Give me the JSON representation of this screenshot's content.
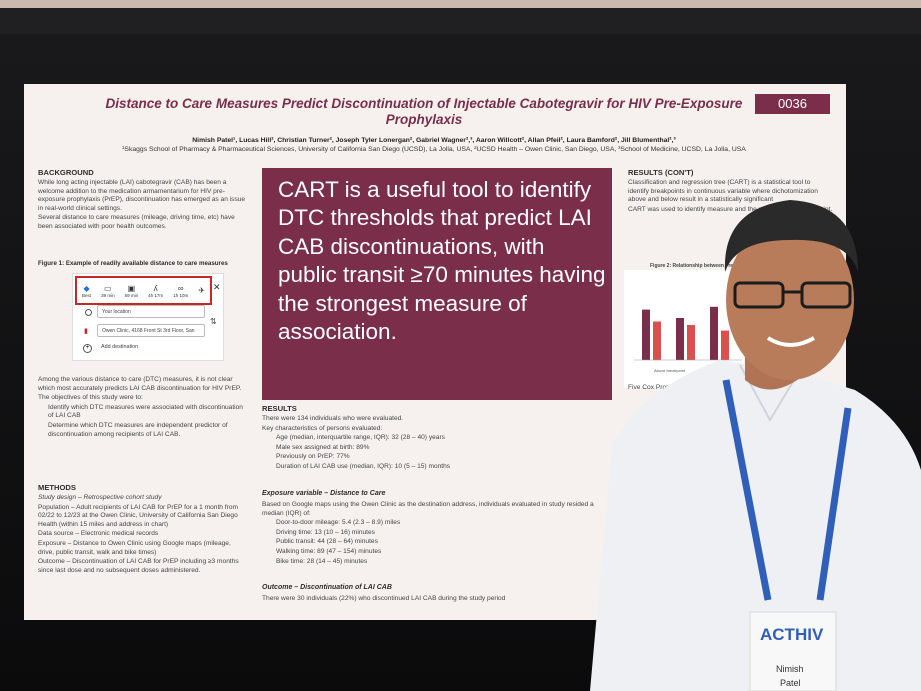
{
  "poster": {
    "title": "Distance to Care Measures Predict Discontinuation of Injectable Cabotegravir for HIV Pre-Exposure Prophylaxis",
    "number": "0036",
    "authors": "Nimish Patel¹, Lucas Hill², Christian Turner², Joseph Tyler Lonergan², Gabriel Wagner²,³, Aaron Willcott², Allan Pfeil², Laura Bamford², Jill Blumenthal²,³",
    "affiliations": "¹Skaggs School of Pharmacy & Pharmaceutical Sciences, University of California San Diego (UCSD), La Jolla, USA, ²UCSD Health – Owen Clinic, San Diego, USA, ³School of Medicine, UCSD, La Jolla, USA"
  },
  "background": {
    "heading": "BACKGROUND",
    "items": [
      "While long acting injectable (LAI) cabotegravir (CAB) has been a welcome addition to the medication armamentarium for HIV pre-exposure prophylaxis (PrEP), discontinuation has emerged as an issue in real-world clinical settings.",
      "Several distance to care measures (mileage, driving time, etc) have been associated with poor health outcomes."
    ],
    "figure_caption": "Figure 1: Example of readily available distance to care measures",
    "figure": {
      "modes": [
        {
          "icon": "diamond-icon",
          "label": "Best"
        },
        {
          "icon": "car-icon",
          "label": "39 min"
        },
        {
          "icon": "bus-icon",
          "label": "59 min"
        },
        {
          "icon": "walk-icon",
          "label": "4h 17m"
        },
        {
          "icon": "bike-icon",
          "label": "1h 10m"
        },
        {
          "icon": "plane-icon",
          "label": ""
        }
      ],
      "origin": "Your location",
      "destination": "Owen Clinic, 4168 Front St 3rd Floor, San",
      "add": "Add destination"
    },
    "items2": [
      "Among the various distance to care (DTC) measures, it is not clear which most accurately predicts LAI CAB discontinuation for HIV PrEP.",
      "The objectives of this study were to:"
    ],
    "objectives": [
      "Identify which DTC measures were associated with discontinuation of LAI CAB",
      "Determine which DTC measures are independent predictor of discontinuation among recipients of LAI CAB."
    ]
  },
  "methods": {
    "heading": "METHODS",
    "items": [
      "Study design – Retrospective cohort study",
      "Population – Adult recipients of LAI CAB for PrEP for a 1 month from 02/22 to 12/23 at the Owen Clinic, University of California San Diego Health (within 15 miles and address in chart)",
      "Data source – Electronic medical records",
      "Exposure – Distance to Owen Clinic using Google maps (mileage, drive, public transit, walk and bike times)",
      "Outcome – Discontinuation of LAI CAB for PrEP including ≥3 months since last dose and no subsequent doses administered."
    ]
  },
  "callout": "CART is a useful tool to identify DTC thresholds that predict LAI CAB discontinuations, with public transit ≥70 minutes having the strongest measure of association.",
  "results": {
    "heading": "RESULTS",
    "items": [
      "There were 134 individuals who were evaluated.",
      "Key characteristics of persons evaluated:"
    ],
    "subitems": [
      "Age (median, interquartile range, IQR): 32 (28 – 40) years",
      "Male sex assigned at birth: 89%",
      "Previously on PrEP: 77%",
      "Duration of LAI CAB use (median, IQR): 10 (5 – 15) months"
    ],
    "exposure_heading": "Exposure variable – Distance to Care",
    "exposure_intro": "Based on Google maps using the Owen Clinic as the destination address, individuals evaluated in study resided a median (IQR) of:",
    "exposure_items": [
      "Door-to-door mileage: 5.4 (2.3 – 8.9) miles",
      "Driving time: 13 (10 – 16) minutes",
      "Public transit: 44 (28 – 64) minutes",
      "Walking time: 89 (47 – 154) minutes",
      "Bike time: 28 (14 – 45) minutes"
    ],
    "outcome_heading": "Outcome – Discontinuation of LAI CAB",
    "outcome_item": "There were 30 individuals (22%) who discontinued LAI CAB during the study period"
  },
  "results_cont": {
    "heading": "RESULTS (CON'T)",
    "items": [
      "Classification and regression tree (CART) is a statistical tool to identify breakpoints in continuous variable where dichotomization above and below result in a statistically significant",
      "CART was used to identify measure and the variable each breakpoint."
    ],
    "figure_caption": "Figure 2: Relationship between Frequency of LAI",
    "chart_legend": "Above breakpoint",
    "cut_item": "Five Cox Proport run to de"
  },
  "chart_data": {
    "type": "bar",
    "categories": [
      "",
      "",
      ""
    ],
    "series": [
      {
        "name": "",
        "values": [
          0.72,
          0.6,
          0.76
        ],
        "color": "#7a2e4a"
      },
      {
        "name": "",
        "values": [
          0.55,
          0.5,
          0.42
        ],
        "color": "#d9504f"
      }
    ]
  },
  "badge": {
    "logo": "ACTHIV",
    "name_first": "Nimish",
    "name_last": "Patel"
  },
  "colors": {
    "poster_accent": "#7a2e4a",
    "highlight_box": "#c62828",
    "lanyard": "#2f5fb8"
  }
}
